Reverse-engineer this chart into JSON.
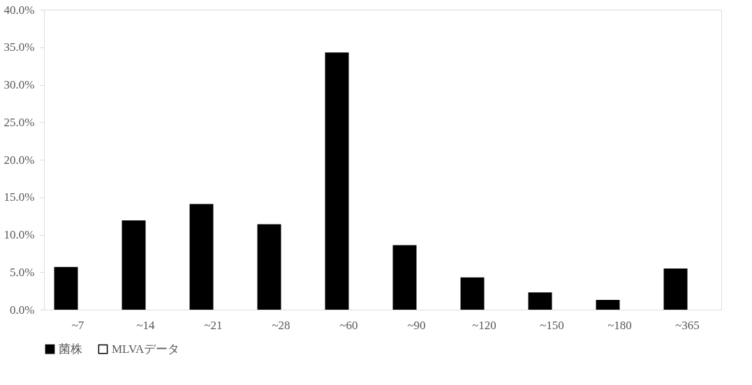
{
  "chart_data": {
    "type": "bar",
    "categories": [
      "~7",
      "~14",
      "~21",
      "~28",
      "~60",
      "~90",
      "~120",
      "~150",
      "~180",
      "~365"
    ],
    "series": [
      {
        "name": "菌株",
        "color": "#000000",
        "values": [
          5.7,
          11.9,
          14.1,
          11.4,
          34.3,
          8.6,
          4.3,
          2.3,
          1.3,
          5.5
        ]
      },
      {
        "name": "MLVAデータ",
        "color": "#ffffff",
        "values": [
          null,
          null,
          null,
          null,
          null,
          null,
          null,
          null,
          null,
          null
        ]
      }
    ],
    "ylim": [
      0,
      40
    ],
    "yticks": [
      {
        "value": 0,
        "label": "0.0%"
      },
      {
        "value": 5,
        "label": "5.0%"
      },
      {
        "value": 10,
        "label": "10.0%"
      },
      {
        "value": 15,
        "label": "15.0%"
      },
      {
        "value": 20,
        "label": "20.0%"
      },
      {
        "value": 25,
        "label": "25.0%"
      },
      {
        "value": 30,
        "label": "30.0%"
      },
      {
        "value": 35,
        "label": "35.0%"
      },
      {
        "value": 40,
        "label": "40.0%"
      }
    ],
    "grid": false,
    "legend": "bottom"
  }
}
